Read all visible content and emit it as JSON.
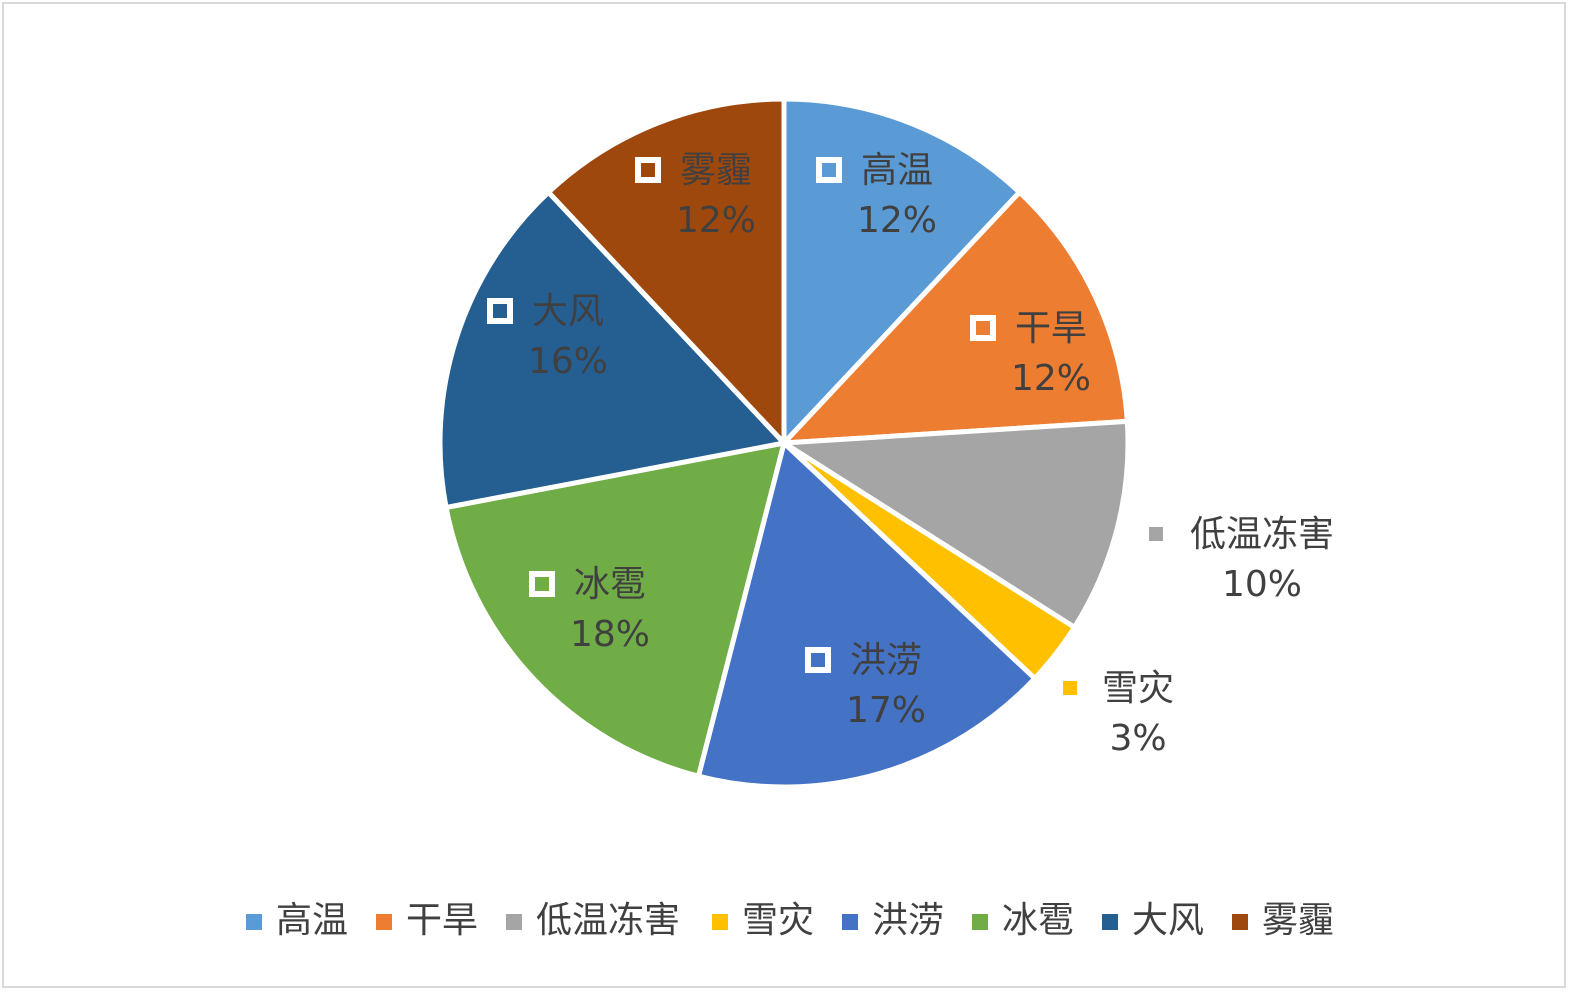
{
  "chart_data": {
    "type": "pie",
    "title": "",
    "legend_position": "bottom",
    "show_percent_labels": true,
    "slices": [
      {
        "name": "高温",
        "value": 12,
        "label": "12%",
        "color": "#5b9bd5"
      },
      {
        "name": "干旱",
        "value": 12,
        "label": "12%",
        "color": "#ed7d31"
      },
      {
        "name": "低温冻害",
        "value": 10,
        "label": "10%",
        "color": "#a5a5a5"
      },
      {
        "name": "雪灾",
        "value": 3,
        "label": "3%",
        "color": "#ffc000"
      },
      {
        "name": "洪涝",
        "value": 17,
        "label": "17%",
        "color": "#4472c4"
      },
      {
        "name": "冰雹",
        "value": 18,
        "label": "18%",
        "color": "#70ad47"
      },
      {
        "name": "大风",
        "value": 16,
        "label": "16%",
        "color": "#255e91"
      },
      {
        "name": "雾霾",
        "value": 12,
        "label": "12%",
        "color": "#9e480e"
      }
    ]
  }
}
